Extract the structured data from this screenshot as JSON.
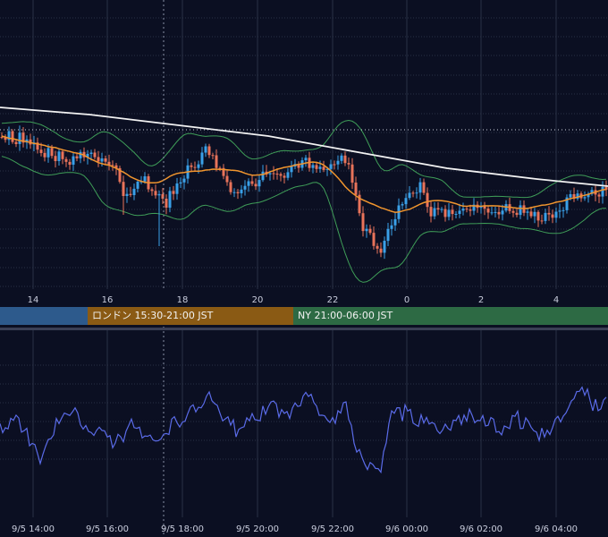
{
  "theme": {
    "background": "#0b0f22",
    "grid": "#2a3045",
    "candle_up": "#3aa0e8",
    "candle_down": "#e8735a",
    "bollinger": "#3f9e58",
    "ma_short": "#f0952e",
    "ma_long": "#f2f2f2",
    "oscillator": "#5a6be8",
    "separator": "#3a3f55"
  },
  "sessions": [
    {
      "id": "tokyo",
      "label": "",
      "color": "#2d5a8c"
    },
    {
      "id": "london",
      "label": "ロンドン 15:30-21:00 JST",
      "color": "#8a5a14"
    },
    {
      "id": "ny",
      "label": "NY 21:00-06:00 JST",
      "color": "#2d6a44"
    }
  ],
  "chart_data": [
    {
      "type": "candlestick",
      "panel": "price",
      "x_tick_labels": [
        "14",
        "16",
        "18",
        "20",
        "22",
        "0",
        "2",
        "4"
      ],
      "overlays": [
        "bollinger_bands",
        "moving_average_short",
        "moving_average_long",
        "reference_level"
      ],
      "grid": true
    },
    {
      "type": "line",
      "panel": "oscillator",
      "x_tick_labels": [
        "9/5 14:00",
        "9/5 16:00",
        "9/5 18:00",
        "9/5 20:00",
        "9/5 22:00",
        "9/6 00:00",
        "9/6 02:00",
        "9/6 04:00"
      ],
      "grid": true
    }
  ]
}
